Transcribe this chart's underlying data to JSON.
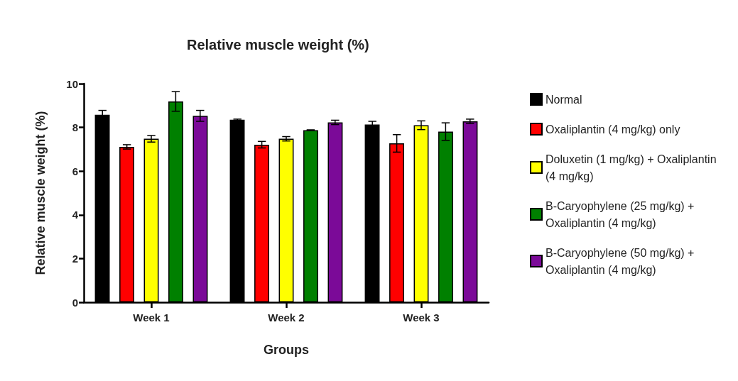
{
  "chart_data": {
    "type": "bar",
    "title": "Relative muscle weight (%)",
    "xlabel": "Groups",
    "ylabel": "Relative muscle weight (%)",
    "categories": [
      "Week 1",
      "Week 2",
      "Week 3"
    ],
    "ylim": [
      0,
      10
    ],
    "yticks": [
      0,
      2,
      4,
      6,
      8,
      10
    ],
    "grid": false,
    "legend": "right",
    "series": [
      {
        "name": "Normal",
        "color": "#000000",
        "values": [
          8.58,
          8.35,
          8.13
        ],
        "errors": [
          0.2,
          0.03,
          0.15
        ]
      },
      {
        "name": "Oxaliplantin (4 mg/kg) only",
        "color": "#ff0000",
        "values": [
          7.11,
          7.21,
          7.27
        ],
        "errors": [
          0.1,
          0.15,
          0.4
        ]
      },
      {
        "name": "Doluxetin (1 mg/kg) + Oxaliplantin (4 mg/kg)",
        "color": "#ffff00",
        "values": [
          7.48,
          7.48,
          8.1
        ],
        "errors": [
          0.15,
          0.1,
          0.2
        ]
      },
      {
        "name": "B-Caryophylene (25 mg/kg) + Oxaliplantin (4 mg/kg)",
        "color": "#008000",
        "values": [
          9.19,
          7.87,
          7.81
        ],
        "errors": [
          0.45,
          0.02,
          0.4
        ]
      },
      {
        "name": "B-Caryophylene (50 mg/kg) + Oxaliplantin (4 mg/kg)",
        "color": "#7b0a98",
        "values": [
          8.53,
          8.23,
          8.28
        ],
        "errors": [
          0.25,
          0.1,
          0.1
        ]
      }
    ]
  }
}
